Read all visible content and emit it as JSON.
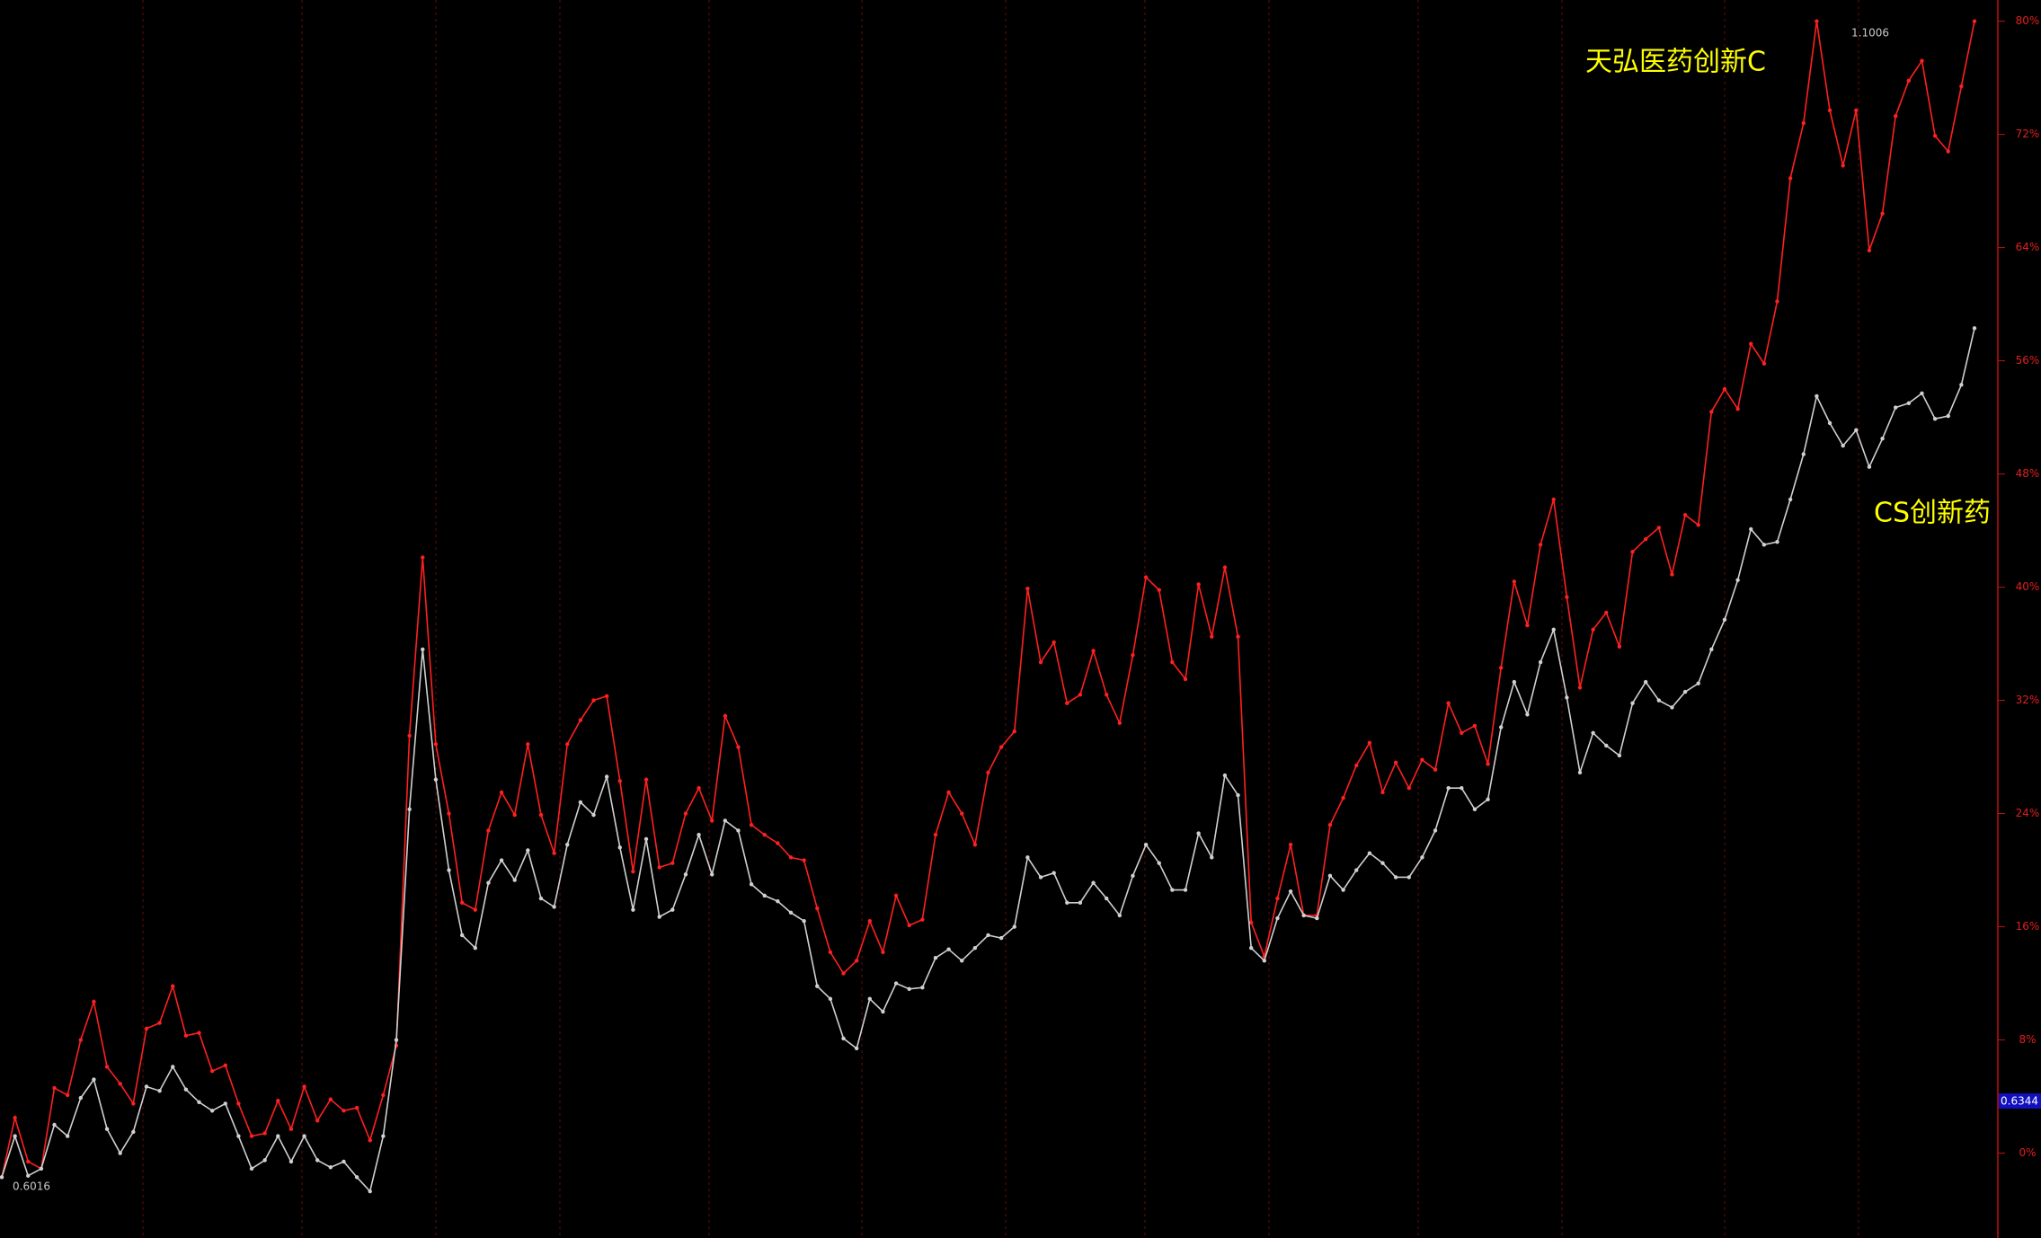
{
  "chart_data": {
    "type": "line",
    "series": [
      {
        "name": "天弘医药创新C",
        "color": "#ff2020",
        "values": [
          -1.7,
          2.5,
          -0.6,
          -1.1,
          4.6,
          4.1,
          8.0,
          10.7,
          6.1,
          4.9,
          3.5,
          8.8,
          9.2,
          11.8,
          8.3,
          8.5,
          5.8,
          6.2,
          3.5,
          1.2,
          1.4,
          3.7,
          1.7,
          4.7,
          2.3,
          3.8,
          3.0,
          3.2,
          0.9,
          4.1,
          7.6,
          29.5,
          42.1,
          28.9,
          24.0,
          17.7,
          17.2,
          22.8,
          25.5,
          23.9,
          28.9,
          23.9,
          21.2,
          28.9,
          30.6,
          32.0,
          32.3,
          26.3,
          19.9,
          26.4,
          20.2,
          20.5,
          24.0,
          25.8,
          23.5,
          30.9,
          28.7,
          23.2,
          22.5,
          21.9,
          20.9,
          20.7,
          17.3,
          14.2,
          12.7,
          13.6,
          16.4,
          14.2,
          18.2,
          16.1,
          16.5,
          22.5,
          25.5,
          24.0,
          21.8,
          26.9,
          28.7,
          29.8,
          39.9,
          34.7,
          36.1,
          31.8,
          32.4,
          35.5,
          32.4,
          30.4,
          35.2,
          40.7,
          39.8,
          34.7,
          33.5,
          40.2,
          36.5,
          41.4,
          36.5,
          16.3,
          13.9,
          18.0,
          21.8,
          16.8,
          16.8,
          23.2,
          25.1,
          27.4,
          29.0,
          25.5,
          27.6,
          25.8,
          27.8,
          27.1,
          31.8,
          29.7,
          30.2,
          27.5,
          34.3,
          40.4,
          37.3,
          43.0,
          46.2,
          39.3,
          32.9,
          37.0,
          38.2,
          35.8,
          42.5,
          43.4,
          44.2,
          40.9,
          45.1,
          44.4,
          52.4,
          54.0,
          52.6,
          57.2,
          55.8,
          60.2,
          68.9,
          72.8,
          80.0,
          73.7,
          69.8,
          73.7,
          63.8,
          66.4,
          73.3,
          75.8,
          77.2,
          71.9,
          70.8,
          75.4,
          80.0
        ]
      },
      {
        "name": "CS创新药",
        "color": "#d0d0d0",
        "values": [
          -1.7,
          1.2,
          -1.6,
          -1.1,
          2.0,
          1.2,
          3.9,
          5.2,
          1.7,
          0.0,
          1.5,
          4.7,
          4.4,
          6.1,
          4.5,
          3.6,
          3.0,
          3.5,
          1.2,
          -1.1,
          -0.5,
          1.2,
          -0.6,
          1.2,
          -0.5,
          -1.0,
          -0.6,
          -1.7,
          -2.7,
          1.2,
          8.0,
          24.3,
          35.6,
          26.4,
          20.0,
          15.4,
          14.5,
          19.1,
          20.7,
          19.3,
          21.4,
          18.0,
          17.4,
          21.8,
          24.8,
          23.9,
          26.6,
          21.6,
          17.2,
          22.2,
          16.7,
          17.2,
          19.7,
          22.5,
          19.7,
          23.5,
          22.8,
          19.0,
          18.2,
          17.8,
          17.0,
          16.4,
          11.8,
          10.9,
          8.1,
          7.4,
          10.9,
          10.0,
          12.0,
          11.6,
          11.7,
          13.8,
          14.4,
          13.6,
          14.5,
          15.4,
          15.2,
          16.0,
          20.9,
          19.5,
          19.8,
          17.7,
          17.7,
          19.1,
          18.0,
          16.8,
          19.6,
          21.8,
          20.5,
          18.6,
          18.6,
          22.6,
          20.9,
          26.7,
          25.3,
          14.5,
          13.6,
          16.6,
          18.5,
          16.8,
          16.6,
          19.6,
          18.6,
          20.0,
          21.2,
          20.5,
          19.5,
          19.5,
          20.9,
          22.8,
          25.8,
          25.8,
          24.3,
          25.0,
          30.1,
          33.3,
          31.0,
          34.7,
          37.0,
          32.2,
          26.9,
          29.7,
          28.8,
          28.1,
          31.8,
          33.3,
          32.0,
          31.5,
          32.6,
          33.2,
          35.6,
          37.7,
          40.5,
          44.1,
          43.0,
          43.2,
          46.2,
          49.4,
          53.5,
          51.6,
          50.0,
          51.1,
          48.5,
          50.5,
          52.7,
          53.0,
          53.7,
          51.9,
          52.1,
          54.3,
          58.3
        ]
      }
    ],
    "ylim": [
      -6,
      81.5
    ],
    "yticks": [
      {
        "value": 0,
        "label": "0%"
      },
      {
        "value": 8,
        "label": "8%"
      },
      {
        "value": 16,
        "label": "16%"
      },
      {
        "value": 24,
        "label": "24%"
      },
      {
        "value": 32,
        "label": "32%"
      },
      {
        "value": 40,
        "label": "40%"
      },
      {
        "value": 48,
        "label": "48%"
      },
      {
        "value": 56,
        "label": "56%"
      },
      {
        "value": 64,
        "label": "64%"
      },
      {
        "value": 72,
        "label": "72%"
      },
      {
        "value": 80,
        "label": "80%"
      }
    ],
    "annotations": {
      "max_label": "1.1006",
      "min_label": "0.6016",
      "current_label": "0.6344"
    }
  }
}
